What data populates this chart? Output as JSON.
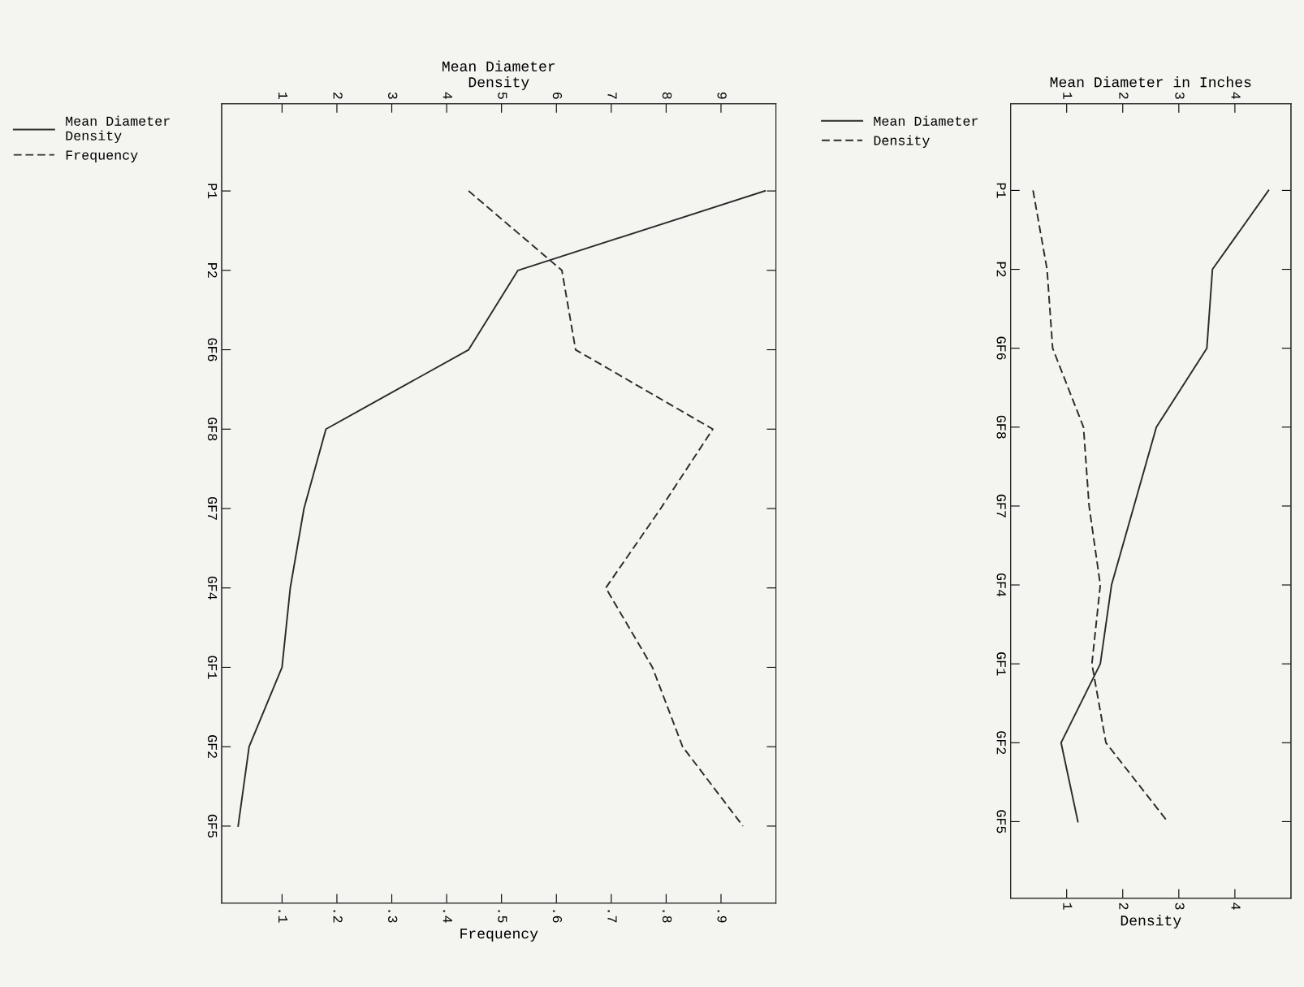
{
  "chart_data": [
    {
      "type": "line",
      "orientation": "horizontal",
      "xlabel": "Frequency",
      "x2label": "Mean Diameter\nDensity",
      "categories": [
        "P1",
        "P2",
        "GF6",
        "GF8",
        "GF7",
        "GF4",
        "GF1",
        "GF2",
        "GF5"
      ],
      "xlim": [
        -0.01,
        1.0
      ],
      "xticks": [
        {
          "value": 0.1,
          "label": ".1"
        },
        {
          "value": 0.2,
          "label": ".2"
        },
        {
          "value": 0.3,
          "label": ".3"
        },
        {
          "value": 0.4,
          "label": ".4"
        },
        {
          "value": 0.5,
          "label": ".5"
        },
        {
          "value": 0.6,
          "label": ".6"
        },
        {
          "value": 0.7,
          "label": ".7"
        },
        {
          "value": 0.8,
          "label": ".8"
        },
        {
          "value": 0.9,
          "label": ".9"
        }
      ],
      "x2lim": [
        -0.1,
        10.0
      ],
      "x2ticks": [
        1,
        2,
        3,
        4,
        5,
        6,
        7,
        8,
        9
      ],
      "series": [
        {
          "name": "Mean Diameter\nDensity",
          "color": "#2b2b2b",
          "axis": "x2",
          "line_style": "solid",
          "values": [
            9.8,
            5.3,
            4.4,
            1.8,
            1.4,
            1.15,
            1.0,
            0.4,
            0.2
          ]
        },
        {
          "name": "Frequency",
          "color": "#2b2b2b",
          "line_style": "dashed",
          "values": [
            0.44,
            0.61,
            0.635,
            0.885,
            0.79,
            0.69,
            0.775,
            0.83,
            0.94
          ]
        }
      ],
      "marker": "none",
      "grid": false,
      "legend": "left"
    },
    {
      "type": "line",
      "orientation": "horizontal",
      "xlabel": "Density",
      "x2label": "Mean Diameter in Inches",
      "categories": [
        "P1",
        "P2",
        "GF6",
        "GF8",
        "GF7",
        "GF4",
        "GF1",
        "GF2",
        "GF5"
      ],
      "xlim": [
        0,
        5
      ],
      "xticks": [
        1,
        2,
        3,
        4
      ],
      "x2lim": [
        0,
        5
      ],
      "x2ticks": [
        1,
        2,
        3,
        4
      ],
      "series": [
        {
          "name": "Mean Diameter",
          "color": "#2b2b2b",
          "axis": "x2",
          "line_style": "solid",
          "values": [
            4.6,
            3.6,
            3.5,
            2.6,
            2.2,
            1.8,
            1.6,
            0.9,
            1.2
          ]
        },
        {
          "name": "Density",
          "color": "#2b2b2b",
          "line_style": "dashed",
          "values": [
            0.4,
            0.65,
            0.75,
            1.3,
            1.4,
            1.6,
            1.45,
            1.7,
            2.8
          ]
        }
      ],
      "marker": "none",
      "grid": false,
      "legend": "left"
    }
  ]
}
